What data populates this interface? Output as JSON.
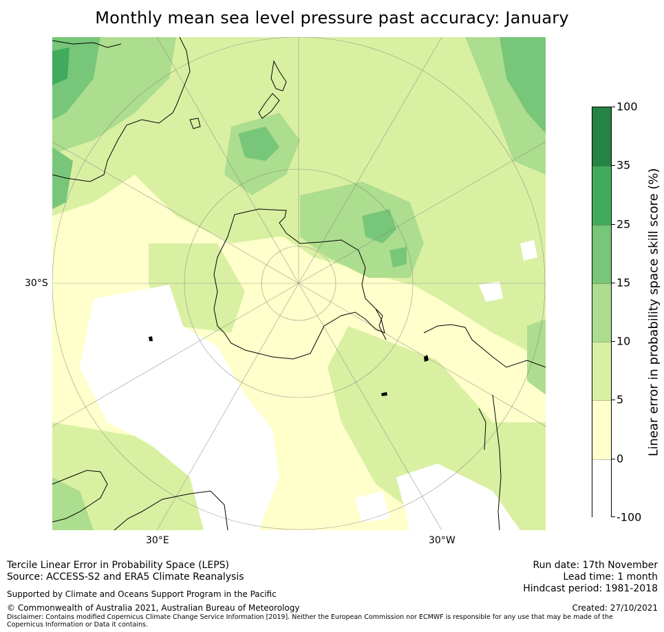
{
  "title": "Monthly mean sea level pressure past accuracy: January",
  "map": {
    "projection": "South polar stereographic",
    "labels": {
      "lat_30s": "30°S",
      "lon_30e": "30°E",
      "lon_30w": "30°W"
    }
  },
  "colorbar": {
    "title": "Linear error in probability space skill score (%)",
    "ticks": [
      "100",
      "35",
      "25",
      "15",
      "10",
      "5",
      "0",
      "-100"
    ],
    "colors": [
      "#238443",
      "#41ab5d",
      "#78c679",
      "#addd8e",
      "#d9f0a3",
      "#ffffcc",
      "#ffffff"
    ],
    "edge_color": "#000000"
  },
  "palette": {
    "land_edge": "#000000",
    "grid": "#808080"
  },
  "footer": {
    "product": "Tercile Linear Error in Probability Space (LEPS)",
    "source": "Source: ACCESS-S2 and ERA5 Climate Reanalysis",
    "support": "Supported by Climate and Oceans Support Program in the Pacific",
    "copyright": "© Commonwealth of Australia 2021, Australian Bureau of Meteorology",
    "disclaimer": "Disclaimer: Contains modified Copernicus Climate Change Service Information [2019]. Neither the European Commission nor ECMWF is responsible for any use that may be made of the Copernicus Information or Data it contains.",
    "run_date": "Run date: 17th November",
    "lead_time": "Lead time: 1 month",
    "hindcast": "Hindcast period: 1981-2018",
    "created": "Created: 27/10/2021"
  }
}
